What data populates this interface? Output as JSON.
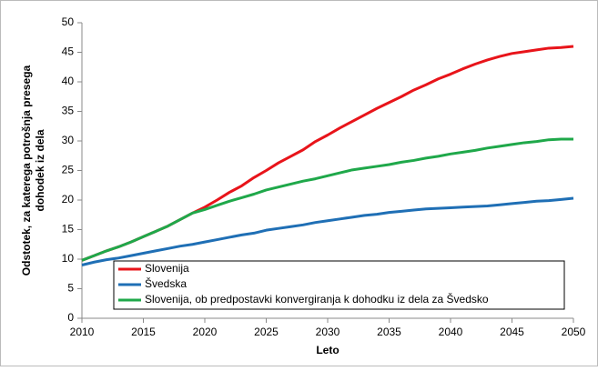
{
  "chart_data": {
    "type": "line",
    "xlabel": "Leto",
    "ylabel": [
      "Odstotek, za katerega potrošnja presega",
      "dohodek iz dela"
    ],
    "x": [
      2010,
      2011,
      2012,
      2013,
      2014,
      2015,
      2016,
      2017,
      2018,
      2019,
      2020,
      2021,
      2022,
      2023,
      2024,
      2025,
      2026,
      2027,
      2028,
      2029,
      2030,
      2031,
      2032,
      2033,
      2034,
      2035,
      2036,
      2037,
      2038,
      2039,
      2040,
      2041,
      2042,
      2043,
      2044,
      2045,
      2046,
      2047,
      2048,
      2049,
      2050
    ],
    "series": [
      {
        "name": "Slovenija",
        "color": "#e8141a",
        "values": [
          9.8,
          10.6,
          11.4,
          12.1,
          12.9,
          13.8,
          14.7,
          15.6,
          16.7,
          17.8,
          18.8,
          20.0,
          21.3,
          22.4,
          23.8,
          25.0,
          26.3,
          27.4,
          28.5,
          29.9,
          31.0,
          32.2,
          33.3,
          34.4,
          35.5,
          36.5,
          37.5,
          38.6,
          39.5,
          40.5,
          41.3,
          42.2,
          43.0,
          43.7,
          44.3,
          44.8,
          45.1,
          45.4,
          45.7,
          45.8,
          46.0
        ]
      },
      {
        "name": "Švedska",
        "color": "#1f6fb5",
        "values": [
          9.0,
          9.5,
          9.9,
          10.2,
          10.6,
          11.0,
          11.4,
          11.8,
          12.2,
          12.5,
          12.9,
          13.3,
          13.7,
          14.1,
          14.4,
          14.9,
          15.2,
          15.5,
          15.8,
          16.2,
          16.5,
          16.8,
          17.1,
          17.4,
          17.6,
          17.9,
          18.1,
          18.3,
          18.5,
          18.6,
          18.7,
          18.8,
          18.9,
          19.0,
          19.2,
          19.4,
          19.6,
          19.8,
          19.9,
          20.1,
          20.3
        ]
      },
      {
        "name": "Slovenija, ob predpostavki konvergiranja k dohodku iz dela za Švedsko",
        "color": "#1fa84a",
        "values": [
          9.8,
          10.6,
          11.4,
          12.1,
          12.9,
          13.8,
          14.7,
          15.6,
          16.7,
          17.8,
          18.4,
          19.1,
          19.8,
          20.4,
          21.0,
          21.7,
          22.2,
          22.7,
          23.2,
          23.6,
          24.1,
          24.6,
          25.1,
          25.4,
          25.7,
          26.0,
          26.4,
          26.7,
          27.1,
          27.4,
          27.8,
          28.1,
          28.4,
          28.8,
          29.1,
          29.4,
          29.7,
          29.9,
          30.2,
          30.3,
          30.3
        ]
      }
    ],
    "xlim": [
      2010,
      2050
    ],
    "xticks": [
      2010,
      2015,
      2020,
      2025,
      2030,
      2035,
      2040,
      2045,
      2050
    ],
    "ylim": [
      0,
      50
    ],
    "yticks": [
      0,
      5,
      10,
      15,
      20,
      25,
      30,
      35,
      40,
      45,
      50
    ],
    "grid": false,
    "legend": "lower right"
  }
}
